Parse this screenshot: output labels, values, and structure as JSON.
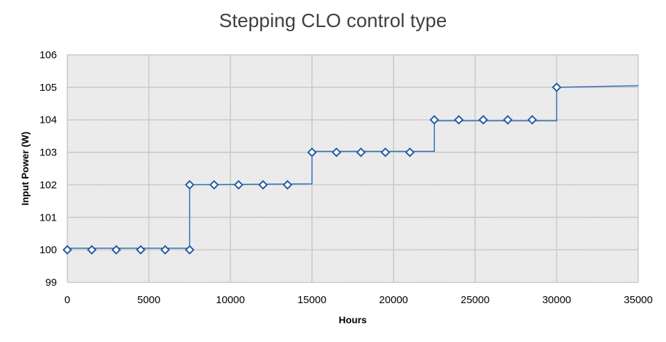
{
  "chart_data": {
    "type": "line",
    "title": "Stepping CLO control type",
    "xlabel": "Hours",
    "ylabel": "Input Power (W)",
    "xlim": [
      0,
      35000
    ],
    "ylim": [
      99,
      106
    ],
    "x_ticks": [
      0,
      5000,
      10000,
      15000,
      20000,
      25000,
      30000,
      35000
    ],
    "y_ticks": [
      99,
      100,
      101,
      102,
      103,
      104,
      105,
      106
    ],
    "grid": true,
    "legend": "none",
    "colors": {
      "line": "#2e6fb5",
      "marker": "#1f5aa0",
      "grid": "#c8c8c8",
      "plot_bg": "#e8e8e8"
    },
    "series": [
      {
        "line": [
          [
            0,
            100.05
          ],
          [
            7500,
            100.05
          ],
          [
            7500,
            102
          ],
          [
            15000,
            102.03
          ],
          [
            15000,
            103.03
          ],
          [
            22500,
            103.03
          ],
          [
            22500,
            103.97
          ],
          [
            30000,
            103.97
          ],
          [
            30000,
            105
          ],
          [
            35000,
            105.05
          ]
        ],
        "markers": [
          [
            0,
            100
          ],
          [
            1500,
            100
          ],
          [
            3000,
            100
          ],
          [
            4500,
            100
          ],
          [
            6000,
            100
          ],
          [
            7500,
            100
          ],
          [
            7500,
            102
          ],
          [
            9000,
            102
          ],
          [
            10500,
            102
          ],
          [
            12000,
            102
          ],
          [
            13500,
            102
          ],
          [
            15000,
            103
          ],
          [
            16500,
            103
          ],
          [
            18000,
            103
          ],
          [
            19500,
            103
          ],
          [
            21000,
            103
          ],
          [
            22500,
            104
          ],
          [
            24000,
            104
          ],
          [
            25500,
            104
          ],
          [
            27000,
            104
          ],
          [
            28500,
            104
          ],
          [
            30000,
            105
          ]
        ]
      }
    ]
  }
}
